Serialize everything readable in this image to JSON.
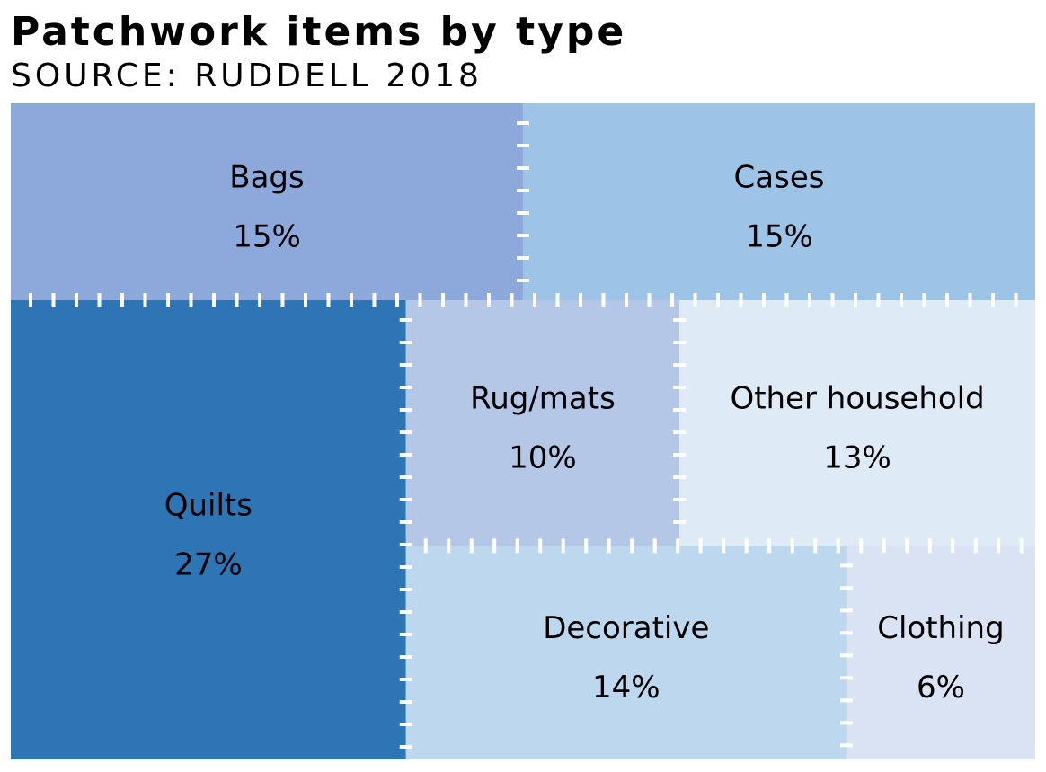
{
  "chart_data": {
    "type": "treemap",
    "title": "Patchwork items by type",
    "subtitle": "SOURCE: RUDDELL 2018",
    "value_format": "percent",
    "items": [
      {
        "label": "Bags",
        "value": 15,
        "color": "#8DA9DB"
      },
      {
        "label": "Cases",
        "value": 15,
        "color": "#9DC3E6"
      },
      {
        "label": "Quilts",
        "value": 27,
        "color": "#2E75B6"
      },
      {
        "label": "Rug/mats",
        "value": 10,
        "color": "#B4C7E7"
      },
      {
        "label": "Other household",
        "value": 13,
        "color": "#DEEBF7"
      },
      {
        "label": "Decorative",
        "value": 14,
        "color": "#BDD7EE"
      },
      {
        "label": "Clothing",
        "value": 6,
        "color": "#DAE3F3"
      }
    ]
  }
}
